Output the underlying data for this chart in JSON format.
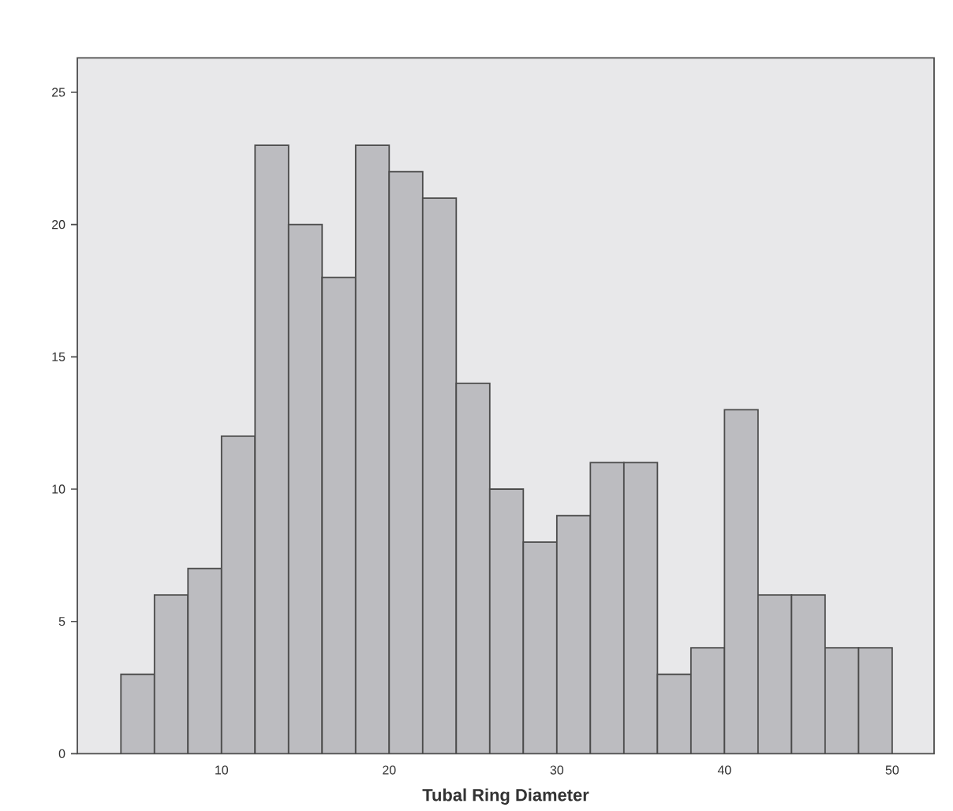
{
  "chart_data": {
    "type": "histogram",
    "xlabel": "Tubal Ring Diameter",
    "bins": [
      4,
      6,
      8,
      10,
      12,
      14,
      16,
      18,
      20,
      22,
      24,
      26,
      28,
      30,
      32,
      34,
      36,
      38,
      40,
      42,
      44,
      46,
      48,
      50
    ],
    "values": [
      3,
      6,
      7,
      12,
      23,
      20,
      18,
      23,
      22,
      21,
      14,
      10,
      8,
      9,
      11,
      11,
      3,
      4,
      13,
      6,
      6,
      4,
      4
    ],
    "color": "#bcbcc0",
    "xlim": [
      1.4,
      52.5
    ],
    "ylim": [
      0,
      26.3
    ],
    "xticks": [
      10,
      20,
      30,
      40,
      50
    ],
    "yticks": [
      0,
      5,
      10,
      15,
      20,
      25
    ],
    "grid": false
  }
}
